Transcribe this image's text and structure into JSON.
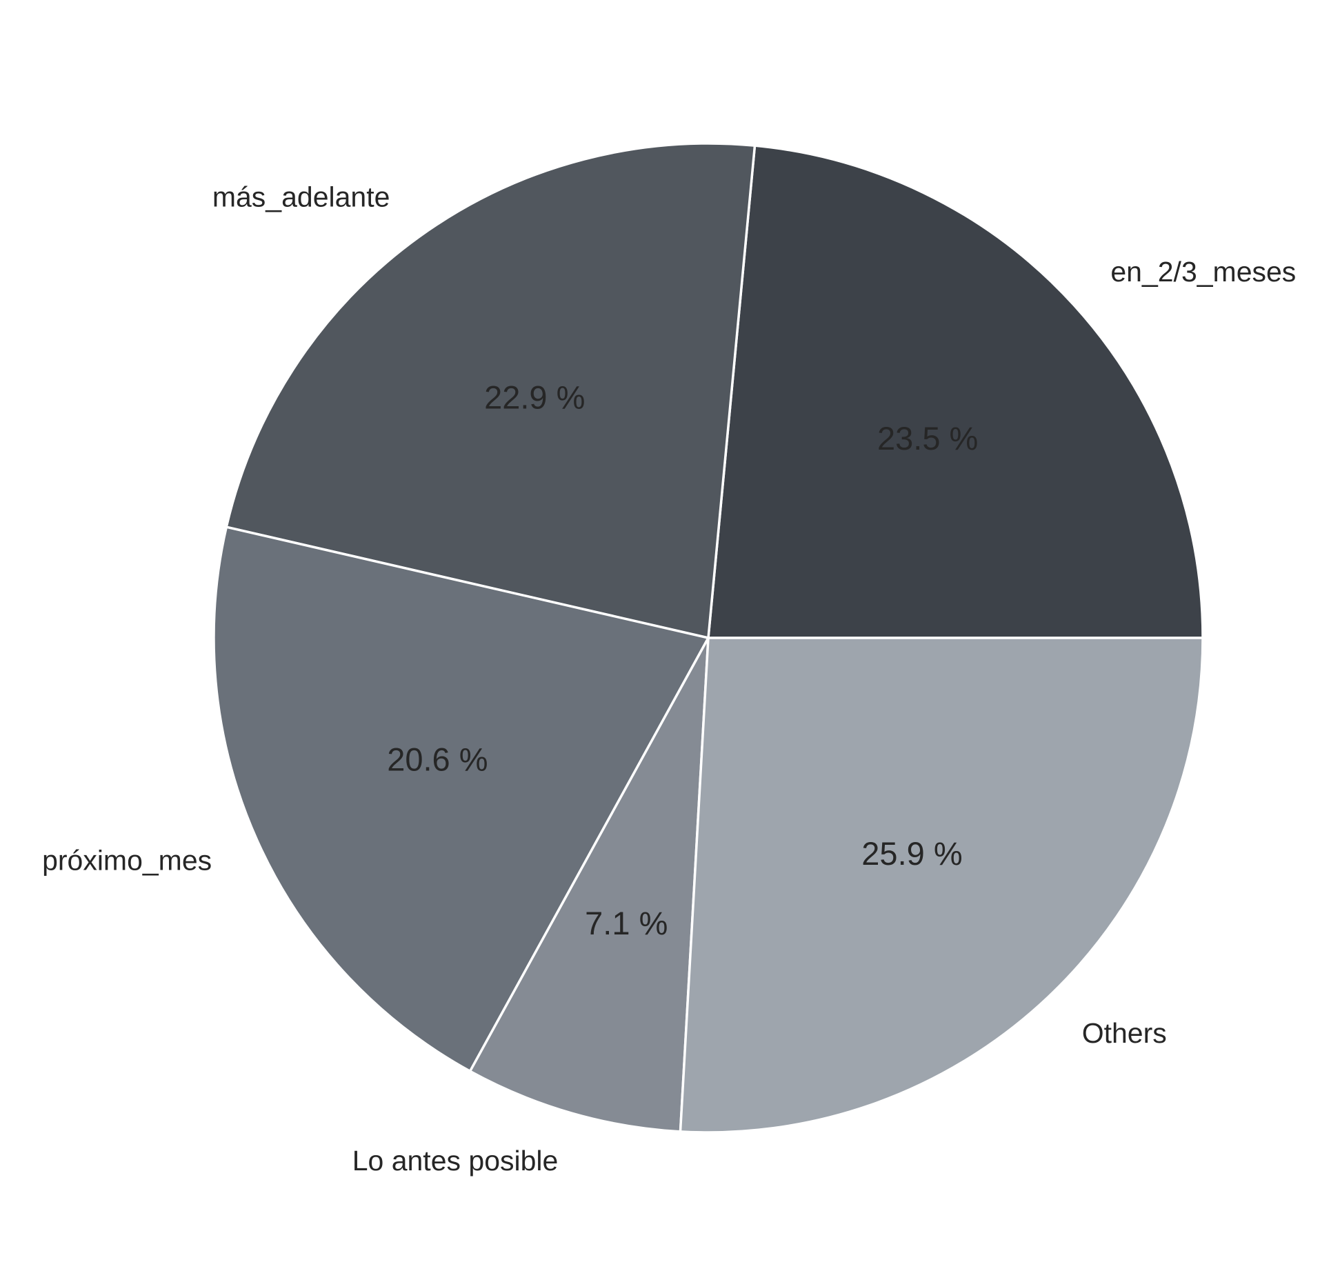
{
  "chart_data": {
    "type": "pie",
    "title": "",
    "start_angle_deg": 0,
    "direction": "counterclockwise",
    "slices": [
      {
        "label": "en_2/3_meses",
        "value": 23.5,
        "pct_label": "23.5 %",
        "color": "#3d4249"
      },
      {
        "label": "más_adelante",
        "value": 22.9,
        "pct_label": "22.9 %",
        "color": "#51575e"
      },
      {
        "label": "próximo_mes",
        "value": 20.6,
        "pct_label": "20.6 %",
        "color": "#6a717a"
      },
      {
        "label": "Lo antes posible",
        "value": 7.1,
        "pct_label": "7.1 %",
        "color": "#858b94"
      },
      {
        "label": "Others",
        "value": 25.9,
        "pct_label": "25.9 %",
        "color": "#9ea5ad"
      }
    ]
  }
}
